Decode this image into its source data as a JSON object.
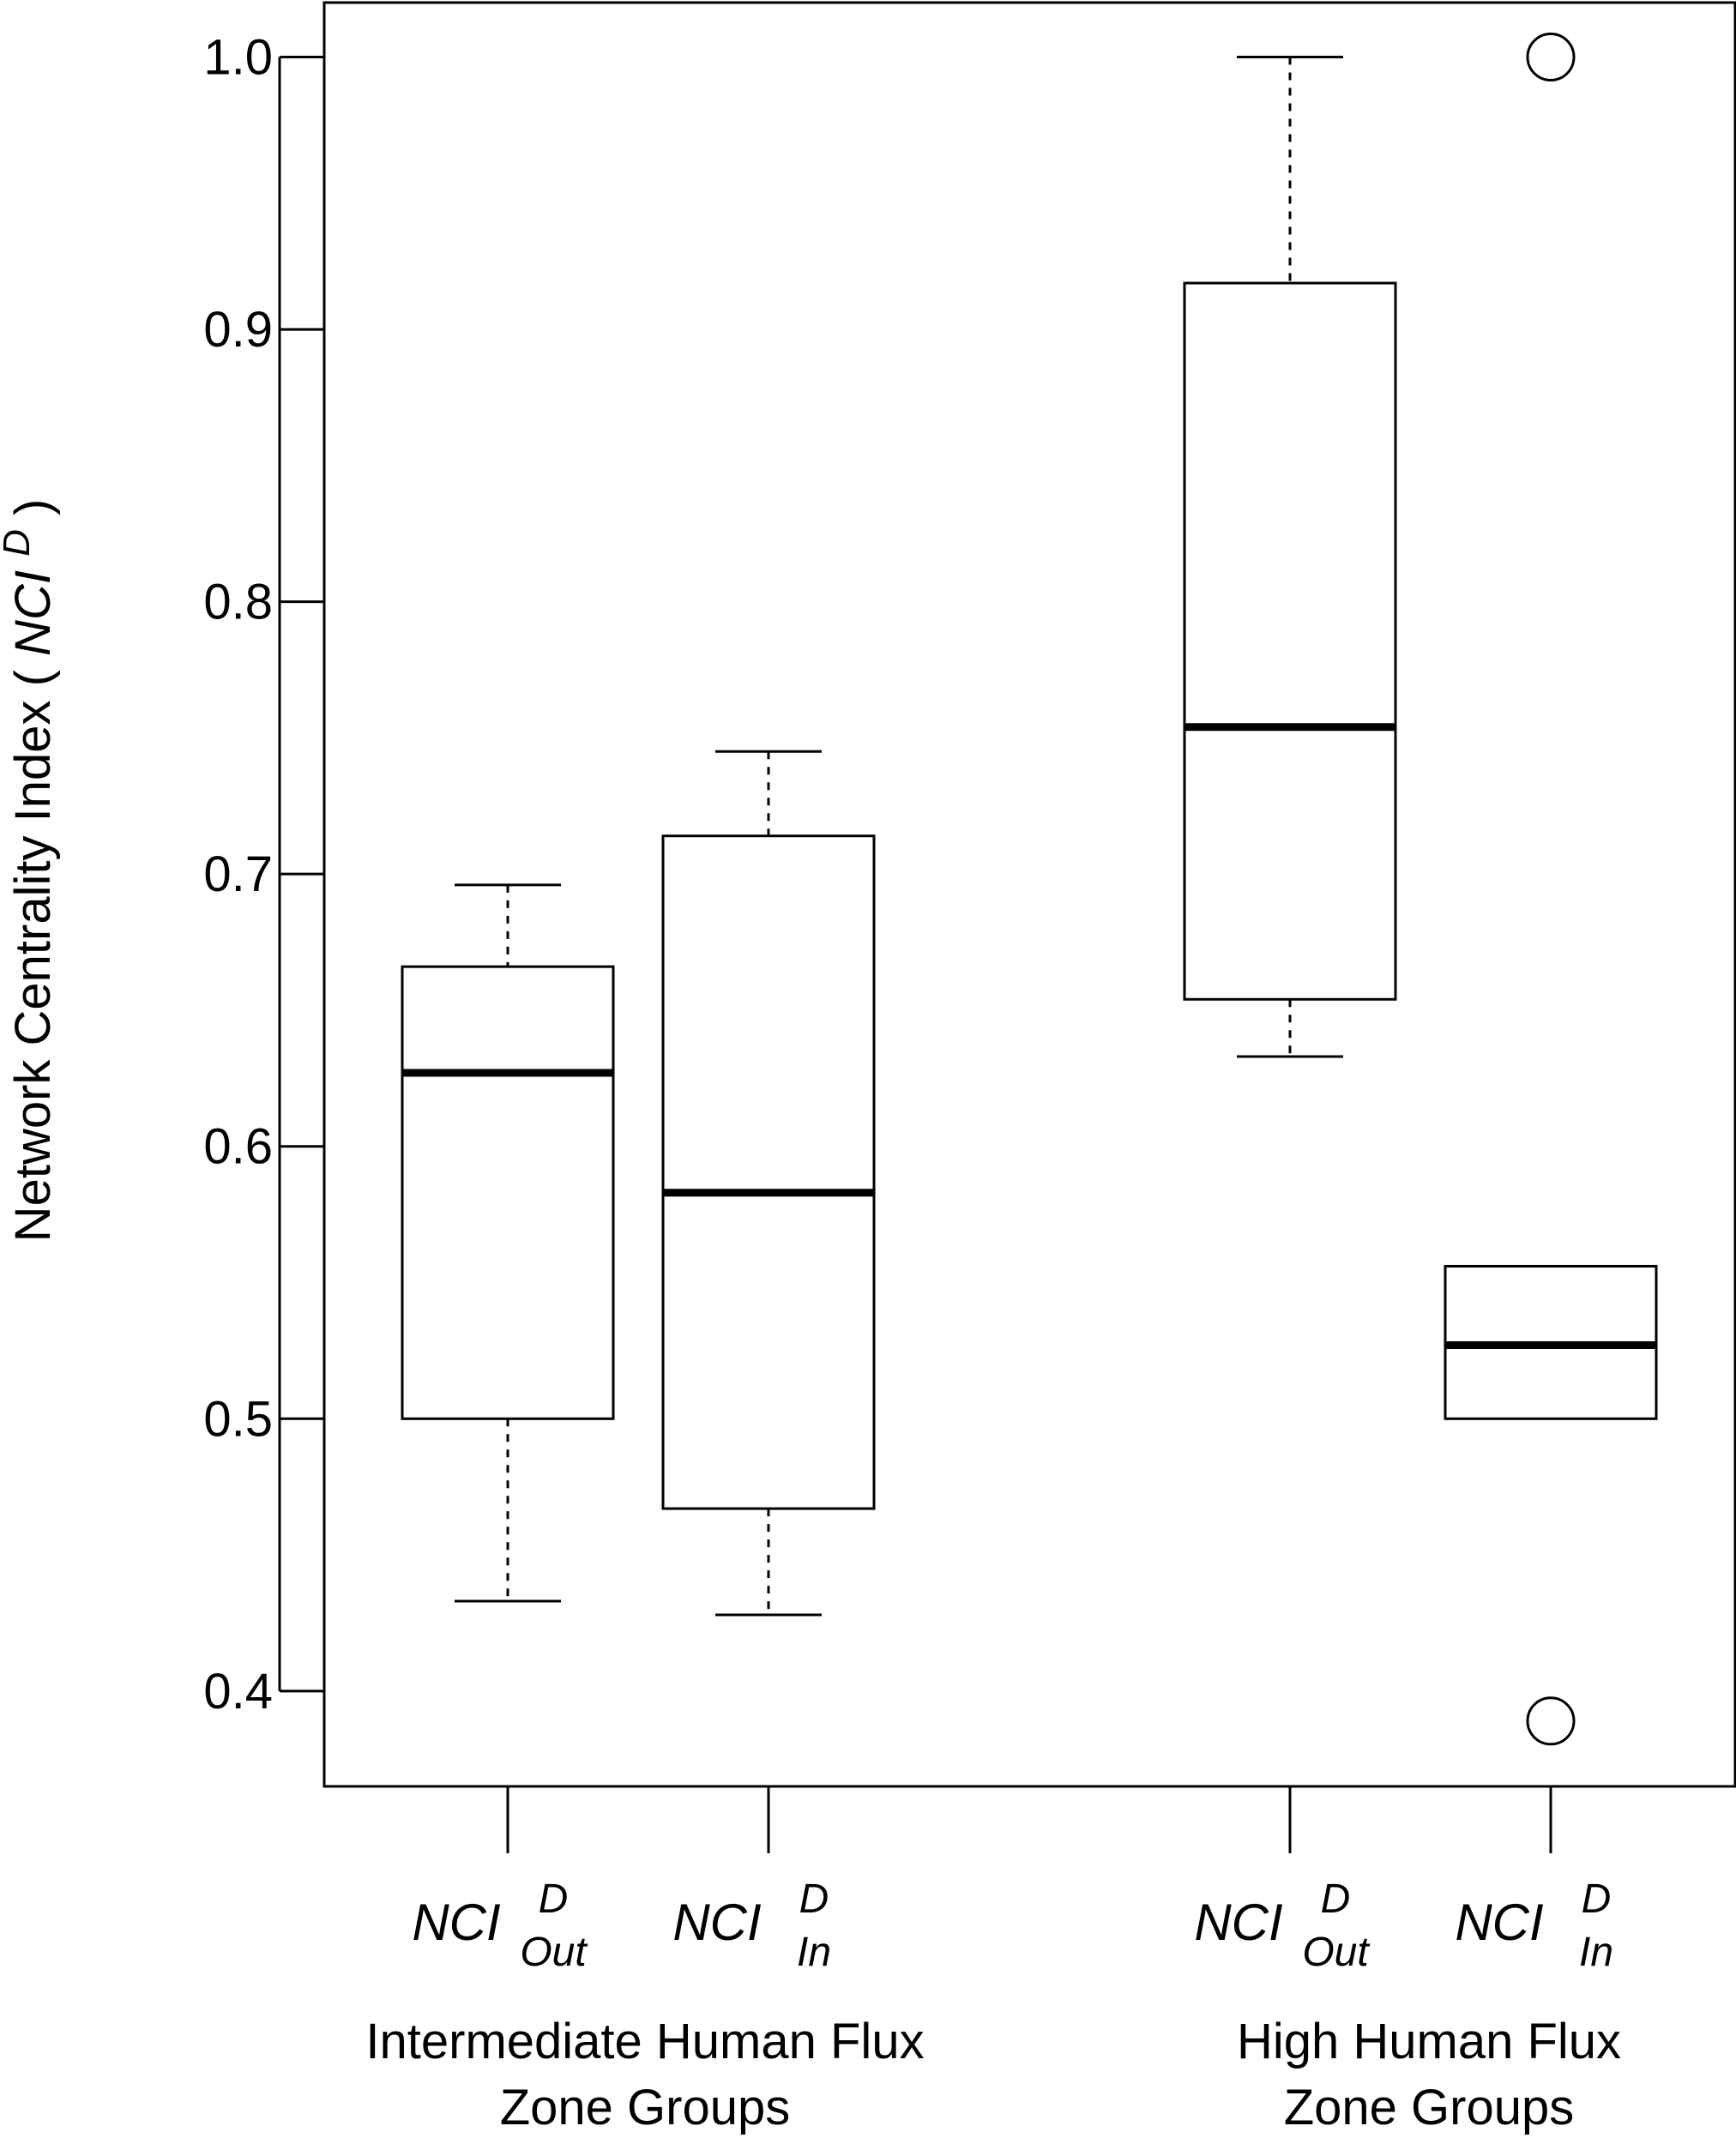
{
  "chart_data": {
    "type": "box",
    "ylabel": "Network Centrality Index",
    "ylabel_math": {
      "base": "NCI",
      "sup": "D"
    },
    "ylim": [
      0.365,
      1.02
    ],
    "yticks": [
      "0.4",
      "0.5",
      "0.6",
      "0.7",
      "0.8",
      "0.9",
      "1.0"
    ],
    "grid": false,
    "legend": "none",
    "colors": {
      "stroke": "#000000",
      "fill": "#ffffff"
    },
    "groups": [
      {
        "label_lines": [
          "Intermediate Human Flux",
          "Zone Groups"
        ]
      },
      {
        "label_lines": [
          "High Human Flux",
          "Zone Groups"
        ]
      }
    ],
    "boxes": [
      {
        "group": 0,
        "label": {
          "base": "NCI",
          "sup": "D",
          "sub": "Out"
        },
        "whisker_low": 0.433,
        "q1": 0.5,
        "median": 0.627,
        "q3": 0.666,
        "whisker_high": 0.696,
        "outliers": []
      },
      {
        "group": 0,
        "label": {
          "base": "NCI",
          "sup": "D",
          "sub": "In"
        },
        "whisker_low": 0.428,
        "q1": 0.467,
        "median": 0.583,
        "q3": 0.714,
        "whisker_high": 0.745,
        "outliers": []
      },
      {
        "group": 1,
        "label": {
          "base": "NCI",
          "sup": "D",
          "sub": "Out"
        },
        "whisker_low": 0.633,
        "q1": 0.654,
        "median": 0.754,
        "q3": 0.917,
        "whisker_high": 1.0,
        "outliers": []
      },
      {
        "group": 1,
        "label": {
          "base": "NCI",
          "sup": "D",
          "sub": "In"
        },
        "whisker_low": 0.5,
        "q1": 0.5,
        "median": 0.527,
        "q3": 0.556,
        "whisker_high": 0.556,
        "outliers": [
          1.0,
          0.389
        ]
      }
    ]
  }
}
